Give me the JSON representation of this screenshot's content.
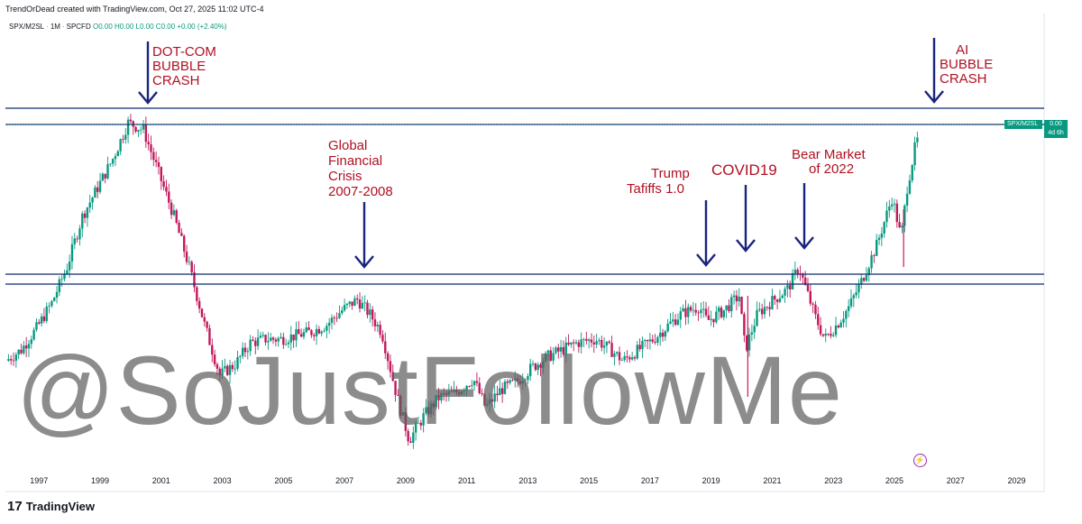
{
  "header": {
    "credit": "TrendOrDead created with TradingView.com, Oct 27, 2025 11:02 UTC-4",
    "symbol": "SPX/M2SL",
    "interval": "1M",
    "source": "SPCFD",
    "ohlc": "O0.00 H0.00 L0.00 C0.00 +0.00 (+2.40%)"
  },
  "price_badge": {
    "symbol": "SPX/M2SL",
    "value": "0.00",
    "countdown": "4d 6h"
  },
  "watermark": "@SoJustFollowMe",
  "footer": {
    "brand": "TradingView",
    "logo": "17"
  },
  "annotations": {
    "dotcom": [
      "DOT-COM",
      "BUBBLE",
      "CRASH"
    ],
    "gfc": [
      "Global",
      "Financial",
      "Crisis",
      "2007-2008"
    ],
    "trump": [
      "Trump",
      "Tafiffs 1.0"
    ],
    "covid": [
      "COVID19"
    ],
    "bear": [
      "Bear Market",
      "of 2022"
    ],
    "ai": [
      "AI",
      "BUBBLE",
      "CRASH"
    ]
  },
  "colors": {
    "annotation_text": "#b01022",
    "arrow": "#1a237e",
    "hline": "#0d2a6a",
    "up": "#089981",
    "down": "#c2185b"
  },
  "chart_data": {
    "type": "candlestick",
    "x_tick_labels": [
      "1997",
      "1999",
      "2001",
      "2003",
      "2005",
      "2007",
      "2009",
      "2011",
      "2013",
      "2015",
      "2017",
      "2019",
      "2021",
      "2023",
      "2025",
      "2027",
      "2029"
    ],
    "x_range": [
      1995.9,
      2029.9
    ],
    "series": [
      {
        "name": "SPX/M2SL",
        "points": [
          [
            1996.0,
            0.3
          ],
          [
            1996.5,
            0.33
          ],
          [
            1997.0,
            0.39
          ],
          [
            1997.5,
            0.46
          ],
          [
            1998.0,
            0.56
          ],
          [
            1998.5,
            0.7
          ],
          [
            1999.0,
            0.78
          ],
          [
            1999.5,
            0.86
          ],
          [
            2000.0,
            0.96
          ],
          [
            2000.5,
            0.94
          ],
          [
            2001.0,
            0.82
          ],
          [
            2001.5,
            0.7
          ],
          [
            2002.0,
            0.56
          ],
          [
            2002.5,
            0.4
          ],
          [
            2003.0,
            0.26
          ],
          [
            2003.5,
            0.29
          ],
          [
            2004.0,
            0.35
          ],
          [
            2004.5,
            0.36
          ],
          [
            2005.0,
            0.36
          ],
          [
            2005.5,
            0.37
          ],
          [
            2006.0,
            0.38
          ],
          [
            2006.5,
            0.4
          ],
          [
            2007.0,
            0.44
          ],
          [
            2007.5,
            0.47
          ],
          [
            2007.9,
            0.43
          ],
          [
            2008.3,
            0.38
          ],
          [
            2008.8,
            0.2
          ],
          [
            2009.2,
            0.08
          ],
          [
            2009.7,
            0.15
          ],
          [
            2010.2,
            0.2
          ],
          [
            2010.7,
            0.21
          ],
          [
            2011.3,
            0.25
          ],
          [
            2011.7,
            0.17
          ],
          [
            2012.2,
            0.22
          ],
          [
            2012.7,
            0.24
          ],
          [
            2013.2,
            0.28
          ],
          [
            2013.7,
            0.31
          ],
          [
            2014.2,
            0.33
          ],
          [
            2014.7,
            0.35
          ],
          [
            2015.3,
            0.36
          ],
          [
            2015.8,
            0.33
          ],
          [
            2016.2,
            0.3
          ],
          [
            2016.7,
            0.33
          ],
          [
            2017.2,
            0.36
          ],
          [
            2017.7,
            0.4
          ],
          [
            2018.1,
            0.43
          ],
          [
            2018.7,
            0.45
          ],
          [
            2018.95,
            0.41
          ],
          [
            2019.5,
            0.44
          ],
          [
            2020.0,
            0.48
          ],
          [
            2020.2,
            0.33
          ],
          [
            2020.6,
            0.43
          ],
          [
            2021.0,
            0.46
          ],
          [
            2021.6,
            0.5
          ],
          [
            2021.95,
            0.56
          ],
          [
            2022.5,
            0.42
          ],
          [
            2022.8,
            0.36
          ],
          [
            2023.2,
            0.4
          ],
          [
            2023.6,
            0.45
          ],
          [
            2024.0,
            0.52
          ],
          [
            2024.5,
            0.62
          ],
          [
            2025.0,
            0.75
          ],
          [
            2025.1,
            0.72
          ],
          [
            2025.3,
            0.64
          ],
          [
            2025.5,
            0.78
          ],
          [
            2025.8,
            0.91
          ]
        ]
      }
    ],
    "horizontal_levels": [
      "upper pair",
      "lower pair"
    ],
    "grid": false,
    "watermark_text": "@SoJustFollowMe"
  }
}
